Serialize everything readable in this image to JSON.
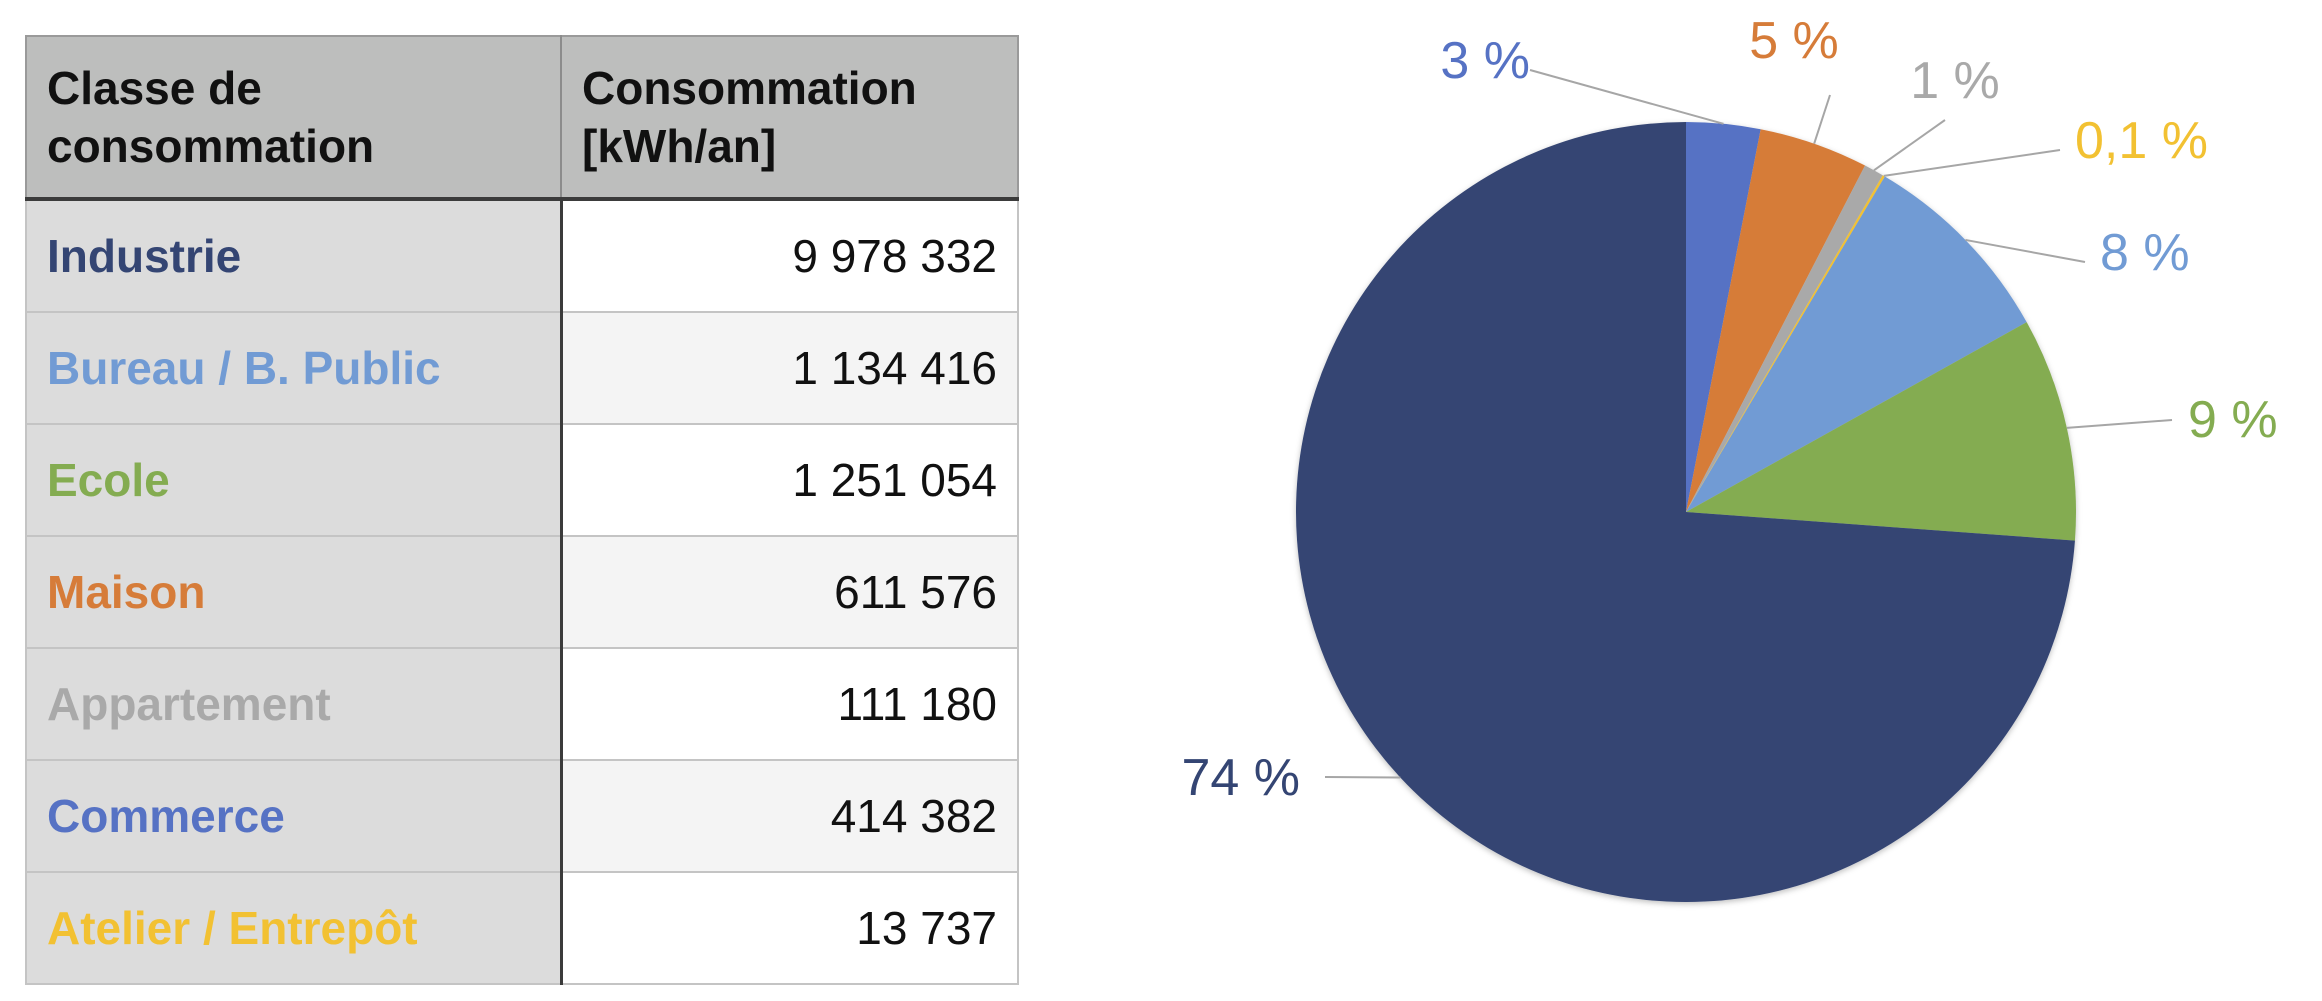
{
  "table": {
    "headers": [
      "Classe de consommation",
      "Consommation [kWh/an]"
    ],
    "rows": [
      {
        "label": "Industrie",
        "value": "9 978 332",
        "color": "#344573"
      },
      {
        "label": "Bureau / B. Public",
        "value": "1 134 416",
        "color": "#719bd4"
      },
      {
        "label": "Ecole",
        "value": "1 251 054",
        "color": "#84ac51"
      },
      {
        "label": "Maison",
        "value": "611 576",
        "color": "#d67c39"
      },
      {
        "label": "Appartement",
        "value": "111 180",
        "color": "#a9a9a9"
      },
      {
        "label": "Commerce",
        "value": "414 382",
        "color": "#5672c4"
      },
      {
        "label": "Atelier / Entrepôt",
        "value": "13 737",
        "color": "#f2c132"
      }
    ]
  },
  "chart_data": {
    "type": "pie",
    "start_angle_deg": 0,
    "direction": "clockwise",
    "slices": [
      {
        "category": "Commerce",
        "value": 414382,
        "label": "3 %",
        "color": "#5672c4"
      },
      {
        "category": "Maison",
        "value": 611576,
        "label": "5 %",
        "color": "#d67c39"
      },
      {
        "category": "Appartement",
        "value": 111180,
        "label": "1 %",
        "color": "#a9a9a9"
      },
      {
        "category": "Atelier / Entrepôt",
        "value": 13737,
        "label": "0,1 %",
        "color": "#f2c132"
      },
      {
        "category": "Bureau / B. Public",
        "value": 1134416,
        "label": "8 %",
        "color": "#719bd4"
      },
      {
        "category": "Ecole",
        "value": 1251054,
        "label": "9 %",
        "color": "#84ac51"
      },
      {
        "category": "Industrie",
        "value": 9978332,
        "label": "74 %",
        "color": "#344573"
      }
    ]
  }
}
